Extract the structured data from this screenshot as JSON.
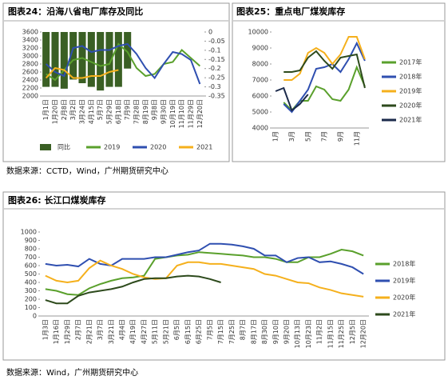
{
  "chart_data": [
    {
      "type": "bar-line",
      "title": "图表24：沿海八省电厂库存及同比",
      "legend": "bottom",
      "grid": false,
      "categories": [
        "1月1日",
        "1月20日",
        "2月8日",
        "3月2日",
        "3月24日",
        "4月15日",
        "5月7日",
        "5月29日",
        "6月18日",
        "7月9日",
        "7月28日",
        "8月19日",
        "9月8日",
        "9月30日",
        "10月19日",
        "11月10日",
        "11月29日",
        "12月20日"
      ],
      "ylim": [
        2000,
        3600
      ],
      "yticks": [
        2000,
        2200,
        2400,
        2600,
        2800,
        3000,
        3200,
        3400,
        3600
      ],
      "y2lim": [
        -0.35,
        0
      ],
      "y2ticks": [
        -0.35,
        -0.3,
        -0.25,
        -0.2,
        -0.15,
        -0.1,
        -0.05,
        0
      ],
      "series": [
        {
          "name": "同比",
          "type": "bar",
          "axis": "y2",
          "color": "#3a5f24",
          "values": [
            -0.3,
            -0.3,
            -0.31,
            -0.26,
            -0.28,
            -0.3,
            -0.32,
            -0.3,
            -0.3,
            -0.2,
            null,
            null,
            null,
            null,
            null,
            null,
            null,
            null
          ]
        },
        {
          "name": "2019",
          "type": "line",
          "color": "#5aa02c",
          "values": [
            2550,
            2400,
            2650,
            2900,
            2950,
            2850,
            2750,
            2800,
            3300,
            3100,
            2700,
            2500,
            2550,
            2800,
            2850,
            3150,
            2950,
            2750
          ]
        },
        {
          "name": "2020",
          "type": "line",
          "color": "#2f4fb0",
          "values": [
            2800,
            2600,
            2500,
            3200,
            3250,
            3100,
            3150,
            3150,
            3250,
            3300,
            3050,
            2700,
            2450,
            2800,
            3100,
            3050,
            2900,
            2300
          ]
        },
        {
          "name": "2021",
          "type": "line",
          "color": "#f5b01c",
          "values": [
            2450,
            2700,
            2650,
            2450,
            2450,
            2500,
            2500,
            2600,
            2650,
            null,
            null,
            null,
            null,
            null,
            null,
            null,
            null,
            null
          ]
        }
      ]
    },
    {
      "type": "line",
      "title": "图表25：重点电厂煤炭库存",
      "legend": "right",
      "grid": false,
      "categories": [
        "1月",
        null,
        "3月",
        null,
        "5月",
        null,
        "7月",
        null,
        "9月",
        null,
        "11月",
        null
      ],
      "ylim": [
        4000,
        10000
      ],
      "yticks": [
        4000,
        5000,
        6000,
        7000,
        8000,
        9000,
        10000
      ],
      "series": [
        {
          "name": "2017年",
          "color": "#5aa02c",
          "values": [
            null,
            5600,
            5100,
            5700,
            5700,
            6600,
            6400,
            5800,
            5700,
            6400,
            7800,
            6600
          ]
        },
        {
          "name": "2018年",
          "color": "#2f4fb0",
          "values": [
            null,
            5500,
            5000,
            5700,
            6400,
            7700,
            7800,
            8000,
            7500,
            8300,
            9300,
            8200
          ]
        },
        {
          "name": "2019年",
          "color": "#f5b01c",
          "values": [
            null,
            7000,
            7000,
            7400,
            8700,
            9000,
            8700,
            8000,
            8600,
            9700,
            9700,
            8300
          ]
        },
        {
          "name": "2020年",
          "color": "#2d4a1c",
          "values": [
            null,
            7500,
            7500,
            7600,
            8400,
            8800,
            8200,
            7700,
            8400,
            8500,
            8600,
            6500
          ]
        },
        {
          "name": "2021年",
          "color": "#1b2a4a",
          "values": [
            6300,
            6500,
            5100,
            5500,
            6100,
            null,
            null,
            null,
            null,
            null,
            null,
            null
          ]
        }
      ]
    },
    {
      "type": "line",
      "title": "图表26:  长江口煤炭库存",
      "legend": "right",
      "grid": false,
      "categories": [
        "1月3日",
        "1月16日",
        "1月29日",
        "2月7日",
        "2月21日",
        "3月7日",
        "3月21日",
        "4月4日",
        "4月19日",
        "4月27日",
        "5月11日",
        "5月21日",
        "6月5日",
        "6月15日",
        "6月25日",
        "7月5日",
        "7月15日",
        "7月25日",
        "8月7日",
        "8月17日",
        "8月30日",
        "9月10日",
        "9月20日",
        "10月13日",
        "10月23日",
        "11月2日",
        "11月15日",
        "11月25日",
        "12月5日",
        "12月20日"
      ],
      "ylim": [
        0,
        1000
      ],
      "yticks": [
        0,
        100,
        200,
        300,
        400,
        500,
        600,
        700,
        800,
        900,
        1000
      ],
      "series": [
        {
          "name": "2018年",
          "color": "#5aa02c",
          "values": [
            320,
            300,
            260,
            250,
            330,
            380,
            420,
            450,
            460,
            480,
            680,
            700,
            720,
            730,
            760,
            750,
            740,
            730,
            720,
            700,
            700,
            680,
            640,
            640,
            700,
            700,
            740,
            790,
            770,
            720
          ]
        },
        {
          "name": "2019年",
          "color": "#2f4fb0",
          "values": [
            620,
            600,
            610,
            590,
            680,
            620,
            600,
            680,
            680,
            680,
            700,
            700,
            730,
            760,
            780,
            860,
            860,
            850,
            830,
            800,
            720,
            720,
            640,
            690,
            700,
            640,
            650,
            620,
            580,
            500
          ]
        },
        {
          "name": "2020年",
          "color": "#f5b01c",
          "values": [
            480,
            420,
            400,
            420,
            570,
            660,
            600,
            560,
            500,
            460,
            440,
            450,
            600,
            640,
            640,
            620,
            620,
            600,
            580,
            560,
            500,
            480,
            440,
            400,
            390,
            340,
            310,
            270,
            250,
            230
          ]
        },
        {
          "name": "2021年",
          "color": "#2d4a1c",
          "values": [
            190,
            150,
            150,
            240,
            280,
            300,
            320,
            350,
            400,
            440,
            450,
            450,
            470,
            480,
            470,
            440,
            400,
            null,
            null,
            null,
            null,
            null,
            null,
            null,
            null,
            null,
            null,
            null,
            null,
            null
          ]
        }
      ]
    }
  ],
  "sources": [
    "数据来源：CCTD，Wind，广州期货研究中心",
    "数据来源：Wind，广州期货研究中心"
  ]
}
